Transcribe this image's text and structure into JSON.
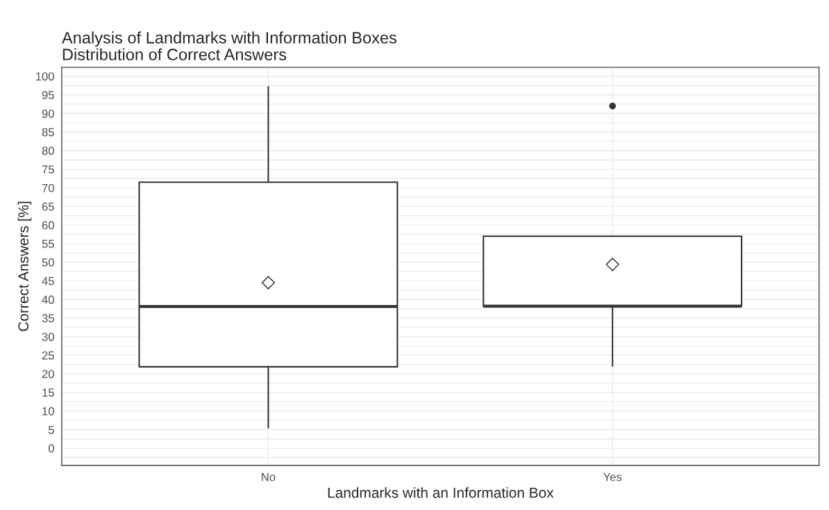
{
  "chart_data": {
    "type": "box",
    "title": "Analysis of Landmarks with Information Boxes",
    "subtitle": "Distribution of Correct Answers",
    "xlabel": "Landmarks with an Information Box",
    "ylabel": "Correct Answers [%]",
    "categories": [
      "No",
      "Yes"
    ],
    "boxes": [
      {
        "low": 5.5,
        "q1": 21.9,
        "median": 38.1,
        "q3": 71.5,
        "high": 97.2,
        "mean": 44.5
      },
      {
        "low": 22.1,
        "q1": 38.2,
        "median": 38.2,
        "q3": 57.0,
        "high": 57.0,
        "mean": 49.4,
        "outliers": [
          92.0
        ]
      }
    ],
    "ylim": [
      -4.6,
      102.4
    ],
    "yticks": [
      0,
      5,
      10,
      15,
      20,
      25,
      30,
      35,
      40,
      45,
      50,
      55,
      60,
      65,
      70,
      75,
      80,
      85,
      90,
      95,
      100
    ],
    "grid": true
  }
}
